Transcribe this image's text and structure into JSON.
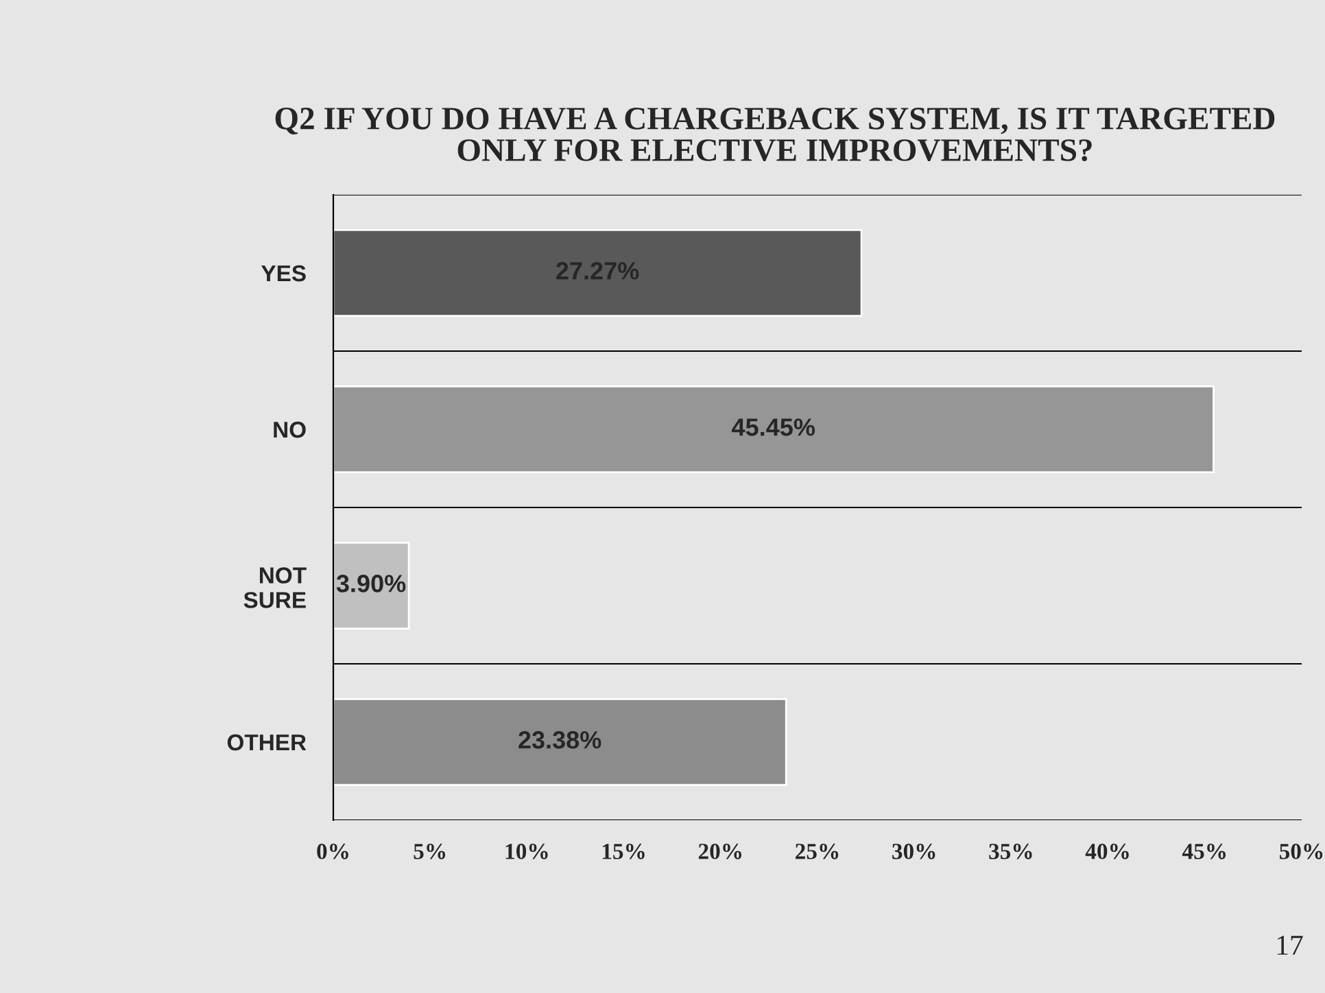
{
  "chart_data": {
    "type": "bar",
    "orientation": "horizontal",
    "title": "Q2 IF YOU DO HAVE A CHARGEBACK SYSTEM, IS IT TARGETED ONLY FOR ELECTIVE IMPROVEMENTS?",
    "categories": [
      "YES",
      "NO",
      "NOT\nSURE",
      "OTHER"
    ],
    "values": [
      27.27,
      45.45,
      3.9,
      23.38
    ],
    "value_labels": [
      "27.27%",
      "45.45%",
      "3.90%",
      "23.38%"
    ],
    "colors": [
      "#595959",
      "#969696",
      "#c0c0c0",
      "#8c8c8c"
    ],
    "xlim": [
      0,
      50
    ],
    "xticks": [
      {
        "value": 0,
        "label": "0%"
      },
      {
        "value": 5,
        "label": "5%"
      },
      {
        "value": 10,
        "label": "10%"
      },
      {
        "value": 15,
        "label": "15%"
      },
      {
        "value": 20,
        "label": "20%"
      },
      {
        "value": 25,
        "label": "25%"
      },
      {
        "value": 30,
        "label": "30%"
      },
      {
        "value": 35,
        "label": "35%"
      },
      {
        "value": 40,
        "label": "40%"
      },
      {
        "value": 45,
        "label": "45%"
      },
      {
        "value": 50,
        "label": "50%"
      }
    ],
    "grid": "y",
    "annotations": [
      "17"
    ]
  }
}
